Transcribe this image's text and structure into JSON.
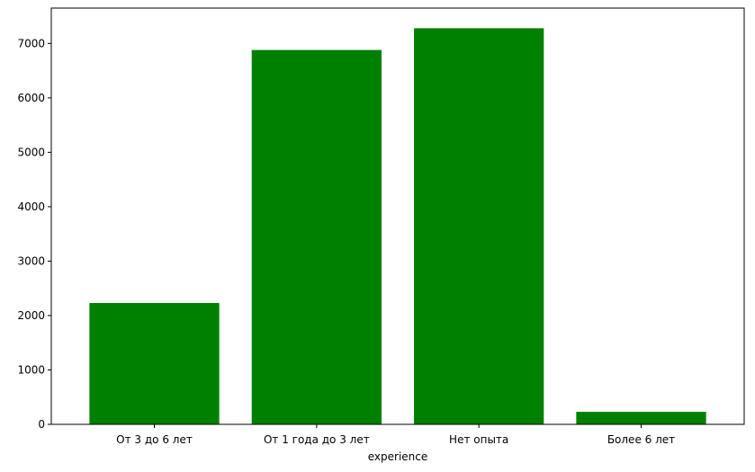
{
  "chart_data": {
    "type": "bar",
    "categories": [
      "От 3 до 6 лет",
      "От 1 года до 3 лет",
      "Нет опыта",
      "Более 6 лет"
    ],
    "values": [
      2230,
      6880,
      7280,
      230
    ],
    "xlabel": "experience",
    "ylabel": "",
    "ylim": [
      0,
      7650
    ],
    "yticks": [
      0,
      1000,
      2000,
      3000,
      4000,
      5000,
      6000,
      7000
    ],
    "bar_color": "#008000",
    "grid": false
  }
}
